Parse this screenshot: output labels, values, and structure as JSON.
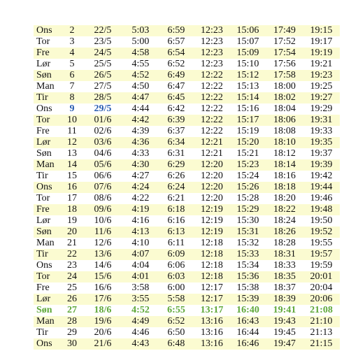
{
  "colors": {
    "row_shade": "#fbfbd1",
    "highlight_blue": "#2a5db0",
    "highlight_green": "#5fa83a"
  },
  "rows": [
    {
      "cells": [
        "Ons",
        "2",
        "22/5",
        "5:03",
        "6:59",
        "12:23",
        "15:06",
        "17:49",
        "19:15"
      ]
    },
    {
      "cells": [
        "Tor",
        "3",
        "23/5",
        "5:00",
        "6:57",
        "12:23",
        "15:07",
        "17:52",
        "19:17"
      ]
    },
    {
      "cells": [
        "Fre",
        "4",
        "24/5",
        "4:58",
        "6:54",
        "12:23",
        "15:09",
        "17:54",
        "19:19"
      ]
    },
    {
      "cells": [
        "Lør",
        "5",
        "25/5",
        "4:55",
        "6:52",
        "12:23",
        "15:10",
        "17:56",
        "19:21"
      ]
    },
    {
      "cells": [
        "Søn",
        "6",
        "26/5",
        "4:52",
        "6:49",
        "12:22",
        "15:12",
        "17:58",
        "19:23"
      ]
    },
    {
      "cells": [
        "Man",
        "7",
        "27/5",
        "4:50",
        "6:47",
        "12:22",
        "15:13",
        "18:00",
        "19:25"
      ]
    },
    {
      "cells": [
        "Tir",
        "8",
        "28/5",
        "4:47",
        "6:45",
        "12:22",
        "15:14",
        "18:02",
        "19:27"
      ]
    },
    {
      "cells": [
        "Ons",
        "9",
        "29/5",
        "4:44",
        "6:42",
        "12:22",
        "15:16",
        "18:04",
        "19:29"
      ],
      "highlight": "blue",
      "highlight_cols": [
        1,
        2
      ]
    },
    {
      "cells": [
        "Tor",
        "10",
        "01/6",
        "4:42",
        "6:39",
        "12:22",
        "15:17",
        "18:06",
        "19:31"
      ]
    },
    {
      "cells": [
        "Fre",
        "11",
        "02/6",
        "4:39",
        "6:37",
        "12:22",
        "15:19",
        "18:08",
        "19:33"
      ]
    },
    {
      "cells": [
        "Lør",
        "12",
        "03/6",
        "4:36",
        "6:34",
        "12:21",
        "15:20",
        "18:10",
        "19:35"
      ]
    },
    {
      "cells": [
        "Søn",
        "13",
        "04/6",
        "4:33",
        "6:31",
        "12:21",
        "15:21",
        "18:12",
        "19:37"
      ]
    },
    {
      "cells": [
        "Man",
        "14",
        "05/6",
        "4:30",
        "6:29",
        "12:20",
        "15:23",
        "18:14",
        "19:39"
      ]
    },
    {
      "cells": [
        "Tir",
        "15",
        "06/6",
        "4:27",
        "6:26",
        "12:20",
        "15:24",
        "18:16",
        "19:42"
      ]
    },
    {
      "cells": [
        "Ons",
        "16",
        "07/6",
        "4:24",
        "6:24",
        "12:20",
        "15:26",
        "18:18",
        "19:44"
      ]
    },
    {
      "cells": [
        "Tor",
        "17",
        "08/6",
        "4:22",
        "6:21",
        "12:20",
        "15:28",
        "18:20",
        "19:46"
      ]
    },
    {
      "cells": [
        "Fre",
        "18",
        "09/6",
        "4:19",
        "6:18",
        "12:19",
        "15:29",
        "18:22",
        "19:48"
      ]
    },
    {
      "cells": [
        "Lør",
        "19",
        "10/6",
        "4:16",
        "6:16",
        "12:19",
        "15:30",
        "18:24",
        "19:50"
      ]
    },
    {
      "cells": [
        "Søn",
        "20",
        "11/6",
        "4:13",
        "6:13",
        "12:19",
        "15:31",
        "18:26",
        "19:52"
      ]
    },
    {
      "cells": [
        "Man",
        "21",
        "12/6",
        "4:10",
        "6:11",
        "12:18",
        "15:32",
        "18:28",
        "19:55"
      ]
    },
    {
      "cells": [
        "Tir",
        "22",
        "13/6",
        "4:07",
        "6:09",
        "12:18",
        "15:33",
        "18:31",
        "19:57"
      ]
    },
    {
      "cells": [
        "Ons",
        "23",
        "14/6",
        "4:04",
        "6:06",
        "12:18",
        "15:34",
        "18:33",
        "19:59"
      ]
    },
    {
      "cells": [
        "Tor",
        "24",
        "15/6",
        "4:01",
        "6:03",
        "12:18",
        "15:36",
        "18:35",
        "20:01"
      ]
    },
    {
      "cells": [
        "Fre",
        "25",
        "16/6",
        "3:58",
        "6:00",
        "12:17",
        "15:38",
        "18:37",
        "20:04"
      ]
    },
    {
      "cells": [
        "Lør",
        "26",
        "17/6",
        "3:55",
        "5:58",
        "12:17",
        "15:39",
        "18:39",
        "20:06"
      ]
    },
    {
      "cells": [
        "Søn",
        "27",
        "18/6",
        "4:52",
        "6:55",
        "13:17",
        "16:40",
        "19:41",
        "21:08"
      ],
      "highlight": "green",
      "highlight_cols": [
        0,
        1,
        2,
        3,
        4,
        5,
        6,
        7,
        8
      ]
    },
    {
      "cells": [
        "Man",
        "28",
        "19/6",
        "4:49",
        "6:52",
        "13:16",
        "16:43",
        "19:43",
        "21:10"
      ]
    },
    {
      "cells": [
        "Tir",
        "29",
        "20/6",
        "4:46",
        "6:50",
        "13:16",
        "16:44",
        "19:45",
        "21:13"
      ]
    },
    {
      "cells": [
        "Ons",
        "30",
        "21/6",
        "4:43",
        "6:48",
        "13:16",
        "16:46",
        "19:47",
        "21:15"
      ]
    }
  ]
}
